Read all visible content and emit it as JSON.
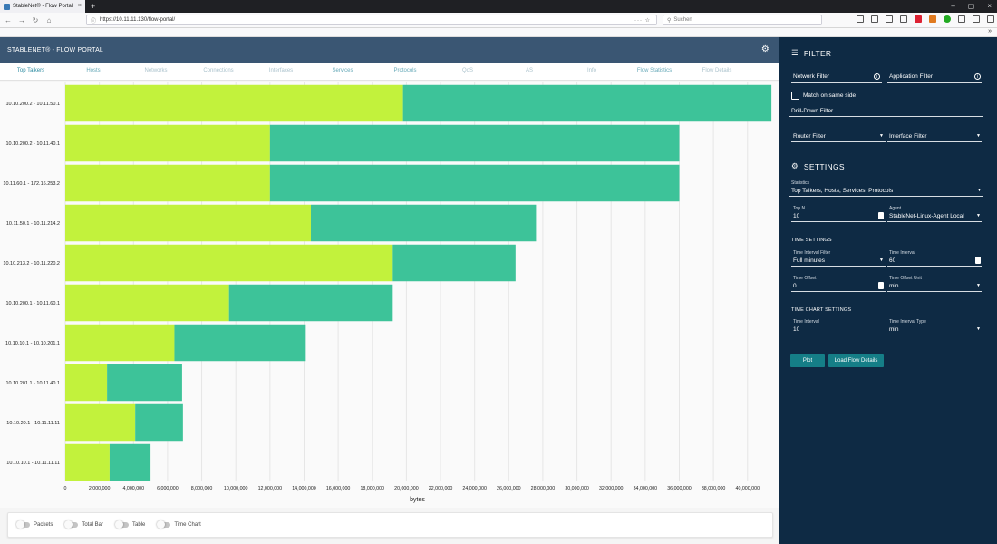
{
  "browser": {
    "tab_title": "StableNet® - Flow Portal",
    "url": "https://10.11.11.130/flow-portal/",
    "search_placeholder": "Suchen"
  },
  "app": {
    "title": "STABLENET® - FLOW PORTAL"
  },
  "nav_tabs": [
    {
      "label": "Top Talkers",
      "state": "active"
    },
    {
      "label": "Hosts",
      "state": "medium"
    },
    {
      "label": "Networks",
      "state": "muted"
    },
    {
      "label": "Connections",
      "state": "muted"
    },
    {
      "label": "Interfaces",
      "state": "muted"
    },
    {
      "label": "Services",
      "state": "medium"
    },
    {
      "label": "Protocols",
      "state": "medium"
    },
    {
      "label": "QoS",
      "state": "muted"
    },
    {
      "label": "AS",
      "state": "muted"
    },
    {
      "label": "Info",
      "state": "muted"
    },
    {
      "label": "Flow Statistics",
      "state": "medium"
    },
    {
      "label": "Flow Details",
      "state": "muted"
    }
  ],
  "chart_data": {
    "type": "bar",
    "orientation": "horizontal",
    "stacked": true,
    "categories": [
      "10.10.200.2 - 10.11.50.1",
      "10.10.200.2 - 10.11.40.1",
      "10.11.60.1 - 172.16.253.2",
      "10.11.50.1 - 10.11.214.2",
      "10.10.213.2 - 10.11.220.2",
      "10.10.200.1 - 10.11.60.1",
      "10.10.10.1 - 10.10.201.1",
      "10.10.201.1 - 10.11.40.1",
      "10.10.20.1 - 10.11.11.11",
      "10.10.10.1 - 10.11.11.11"
    ],
    "series": [
      {
        "color": "#c2f23c",
        "values": [
          19800000,
          12000000,
          12000000,
          14400000,
          19200000,
          9600000,
          6400000,
          2450000,
          4100000,
          2600000
        ]
      },
      {
        "color": "#3dc399",
        "values": [
          21600000,
          24000000,
          24000000,
          13200000,
          7200000,
          9600000,
          7700000,
          4400000,
          2800000,
          2400000
        ]
      }
    ],
    "xlabel": "bytes",
    "xlim": [
      0,
      41500000
    ],
    "xticks": [
      0,
      2000000,
      4000000,
      6000000,
      8000000,
      10000000,
      12000000,
      14000000,
      16000000,
      18000000,
      20000000,
      22000000,
      24000000,
      26000000,
      28000000,
      30000000,
      32000000,
      34000000,
      36000000,
      38000000,
      40000000
    ],
    "xtick_labels": [
      "0",
      "2,000,000",
      "4,000,000",
      "6,000,000",
      "8,000,000",
      "10,000,000",
      "12,000,000",
      "14,000,000",
      "16,000,000",
      "18,000,000",
      "20,000,000",
      "22,000,000",
      "24,000,000",
      "26,000,000",
      "28,000,000",
      "30,000,000",
      "32,000,000",
      "34,000,000",
      "36,000,000",
      "38,000,000",
      "40,000,000"
    ],
    "grid": true
  },
  "toggles": [
    {
      "label": "Packets"
    },
    {
      "label": "Total Bar"
    },
    {
      "label": "Table"
    },
    {
      "label": "Time Chart"
    }
  ],
  "panel": {
    "filter_title": "FILTER",
    "network_filter": "Network Filter",
    "application_filter": "Application Filter",
    "match_same_side": "Match on same side",
    "drilldown_filter": "Drill-Down Filter",
    "router_filter": "Router Filter",
    "interface_filter": "Interface Filter",
    "settings_title": "SETTINGS",
    "statistics_label": "Statistics",
    "statistics_value": "Top Talkers, Hosts, Services, Protocols",
    "topn_label": "Top N",
    "topn_value": "10",
    "agent_label": "Agent",
    "agent_value": "StableNet-Linux-Agent Local",
    "time_settings": "TIME SETTINGS",
    "tif_label": "Time Interval Filter",
    "tif_value": "Full minutes",
    "ti_label": "Time Interval",
    "ti_value": "60",
    "to_label": "Time Offset",
    "to_value": "0",
    "tou_label": "Time Offset Unit",
    "tou_value": "min",
    "time_chart_settings": "TIME CHART SETTINGS",
    "tc_ti_label": "Time Interval",
    "tc_ti_value": "10",
    "tc_tit_label": "Time Interval Type",
    "tc_tit_value": "min",
    "plot_button": "Plot",
    "load_button": "Load Flow Details"
  }
}
